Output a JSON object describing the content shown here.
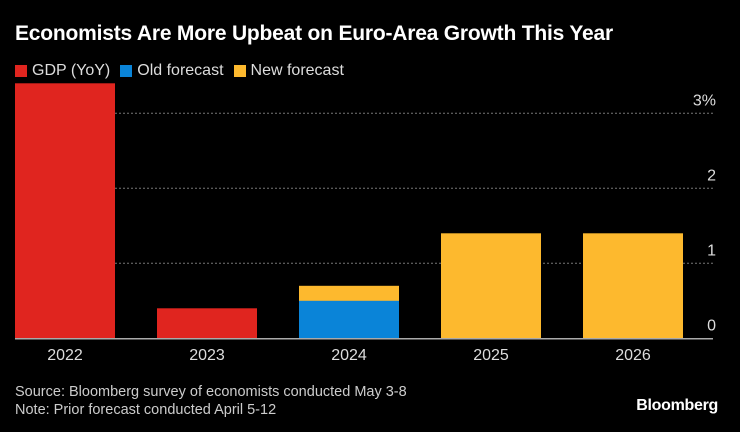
{
  "chart_data": {
    "type": "bar",
    "title": "Economists Are More Upbeat on Euro-Area Growth This Year",
    "categories": [
      "2022",
      "2023",
      "2024",
      "2025",
      "2026"
    ],
    "series": [
      {
        "name": "GDP (YoY)",
        "color": "#e0251f",
        "values": [
          3.4,
          0.4,
          null,
          null,
          null
        ]
      },
      {
        "name": "Old forecast",
        "color": "#0a84d8",
        "values": [
          null,
          null,
          0.5,
          null,
          null
        ]
      },
      {
        "name": "New forecast",
        "color": "#fdb92e",
        "values": [
          null,
          null,
          0.7,
          1.4,
          1.4
        ]
      }
    ],
    "y_ticks": [
      0,
      1,
      2,
      3
    ],
    "y_tick_labels": [
      "0",
      "1",
      "2",
      "3%"
    ],
    "ylim": [
      0,
      3.4
    ],
    "grid": true,
    "legend_position": "top-left",
    "y_axis_side": "right"
  },
  "footer": {
    "source": "Source: Bloomberg survey of economists conducted May 3-8",
    "note": "Note: Prior forecast conducted April 5-12",
    "logo": "Bloomberg"
  }
}
